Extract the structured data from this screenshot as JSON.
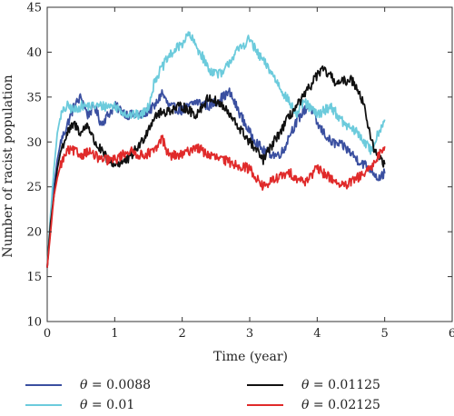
{
  "chart_data": {
    "type": "line",
    "title": "",
    "xlabel": "Time (year)",
    "ylabel": "Number of racist population",
    "xlim": [
      0,
      6
    ],
    "ylim": [
      10,
      45
    ],
    "xticks": [
      0,
      1,
      2,
      3,
      4,
      5,
      6
    ],
    "yticks": [
      10,
      15,
      20,
      25,
      30,
      35,
      40,
      45
    ],
    "grid": false,
    "legend_position": "bottom",
    "series": [
      {
        "name": "θ = 0.0088",
        "color": "#3a4fa0",
        "x": [
          0,
          0.05,
          0.1,
          0.15,
          0.2,
          0.3,
          0.4,
          0.5,
          0.6,
          0.7,
          0.8,
          1.0,
          1.2,
          1.4,
          1.6,
          1.7,
          1.8,
          2.0,
          2.2,
          2.4,
          2.6,
          2.7,
          2.8,
          3.0,
          3.1,
          3.2,
          3.4,
          3.5,
          3.6,
          3.8,
          3.9,
          4.0,
          4.2,
          4.4,
          4.6,
          4.8,
          4.9,
          5.0
        ],
        "y": [
          16,
          21,
          25,
          28,
          30,
          32,
          34,
          35,
          33,
          34,
          32,
          34,
          33,
          33,
          34,
          35.5,
          34,
          33.5,
          34.5,
          34,
          35,
          35.5,
          34,
          31,
          30,
          29,
          28.5,
          29,
          31,
          33.5,
          34,
          32,
          30,
          29.5,
          28,
          27,
          26,
          26.5
        ]
      },
      {
        "name": "θ = 0.01",
        "color": "#6ccbdc",
        "x": [
          0,
          0.05,
          0.1,
          0.15,
          0.2,
          0.3,
          0.4,
          0.5,
          0.7,
          1.0,
          1.2,
          1.4,
          1.5,
          1.6,
          1.8,
          2.0,
          2.1,
          2.3,
          2.4,
          2.6,
          2.7,
          2.8,
          3.0,
          3.1,
          3.3,
          3.5,
          3.7,
          3.8,
          4.0,
          4.2,
          4.4,
          4.6,
          4.8,
          4.9,
          5.0
        ],
        "y": [
          16,
          22,
          27,
          31,
          33,
          34,
          33.5,
          34,
          34,
          34,
          33,
          33,
          34,
          37,
          39.5,
          41,
          42,
          39.5,
          38,
          37.5,
          39,
          40,
          41.5,
          40,
          38,
          35.5,
          33,
          34.5,
          33,
          34,
          32,
          31,
          29,
          31,
          32.5
        ]
      },
      {
        "name": "θ = 0.01125",
        "color": "#111111",
        "x": [
          0,
          0.05,
          0.1,
          0.15,
          0.2,
          0.3,
          0.4,
          0.5,
          0.6,
          0.7,
          0.8,
          0.9,
          1.0,
          1.2,
          1.4,
          1.6,
          1.8,
          2.0,
          2.2,
          2.4,
          2.6,
          2.8,
          3.0,
          3.2,
          3.4,
          3.6,
          3.8,
          4.0,
          4.1,
          4.3,
          4.5,
          4.6,
          4.7,
          4.8,
          4.9,
          5.0
        ],
        "y": [
          16,
          21,
          24,
          27,
          29,
          31,
          32,
          31,
          32,
          30,
          29,
          28,
          27.5,
          28,
          30,
          33,
          33.5,
          34,
          33,
          35,
          34,
          32,
          30,
          28,
          30.5,
          33,
          35,
          37.5,
          38,
          36.5,
          37,
          36,
          34,
          30,
          28.5,
          27.5
        ]
      },
      {
        "name": "θ = 0.02125",
        "color": "#e02a2a",
        "x": [
          0,
          0.05,
          0.1,
          0.15,
          0.2,
          0.3,
          0.4,
          0.5,
          0.6,
          0.8,
          1.0,
          1.2,
          1.4,
          1.6,
          1.7,
          1.8,
          2.0,
          2.2,
          2.4,
          2.6,
          2.8,
          3.0,
          3.2,
          3.4,
          3.6,
          3.8,
          4.0,
          4.2,
          4.4,
          4.6,
          4.8,
          4.9,
          5.0
        ],
        "y": [
          16,
          20,
          24,
          26,
          27.5,
          29,
          29,
          28.5,
          29,
          28,
          28,
          29,
          28.5,
          29,
          30.5,
          28.5,
          28.5,
          29.5,
          28.5,
          28,
          27.5,
          27,
          25,
          26,
          26.5,
          25.5,
          27,
          26,
          25,
          26,
          27,
          28.5,
          29.5
        ]
      }
    ]
  }
}
